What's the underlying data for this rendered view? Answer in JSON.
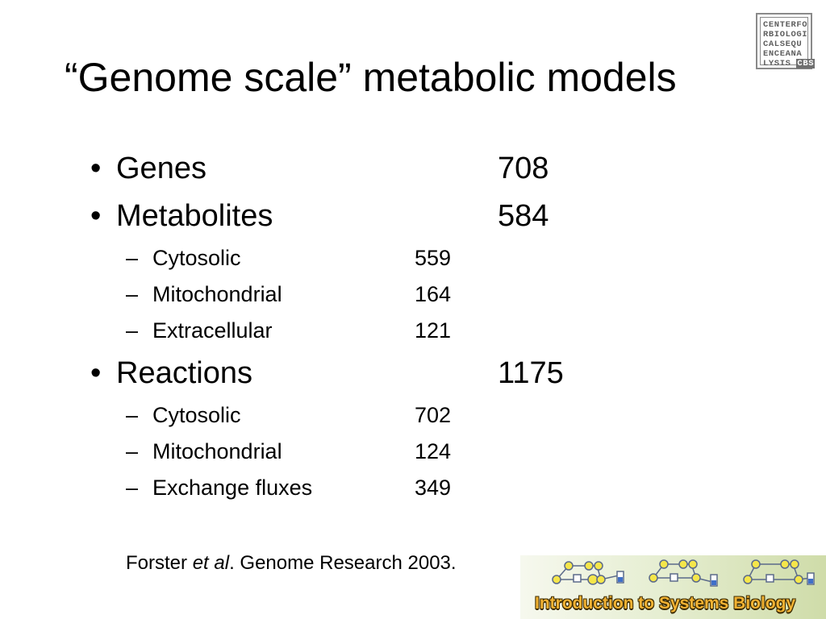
{
  "title": "“Genome scale” metabolic models",
  "logo": {
    "lines": [
      "CENTERFO",
      "RBIOLOGI",
      "CALSEQU",
      "ENCEANA",
      "LYSIS"
    ],
    "cbs": "CBS"
  },
  "bullet_glyph": "•",
  "dash_glyph": "–",
  "items": [
    {
      "label": "Genes",
      "value": "708"
    },
    {
      "label": "Metabolites",
      "value": "584",
      "children": [
        {
          "label": "Cytosolic",
          "value": "559"
        },
        {
          "label": "Mitochondrial",
          "value": "164"
        },
        {
          "label": "Extracellular",
          "value": "121"
        }
      ]
    },
    {
      "label": "Reactions",
      "value": "1175",
      "children": [
        {
          "label": "Cytosolic",
          "value": "702"
        },
        {
          "label": "Mitochondrial",
          "value": "124"
        },
        {
          "label": "Exchange fluxes",
          "value": "349"
        }
      ]
    }
  ],
  "citation": {
    "before": "Forster ",
    "italic": "et al",
    "after": ". Genome Research 2003."
  },
  "banner": {
    "text": "Introduction to Systems Biology",
    "colors": {
      "text": "#f2b233",
      "outline": "#3b2a00",
      "node": "#f5e64a",
      "edge": "#5b6a8a"
    }
  }
}
